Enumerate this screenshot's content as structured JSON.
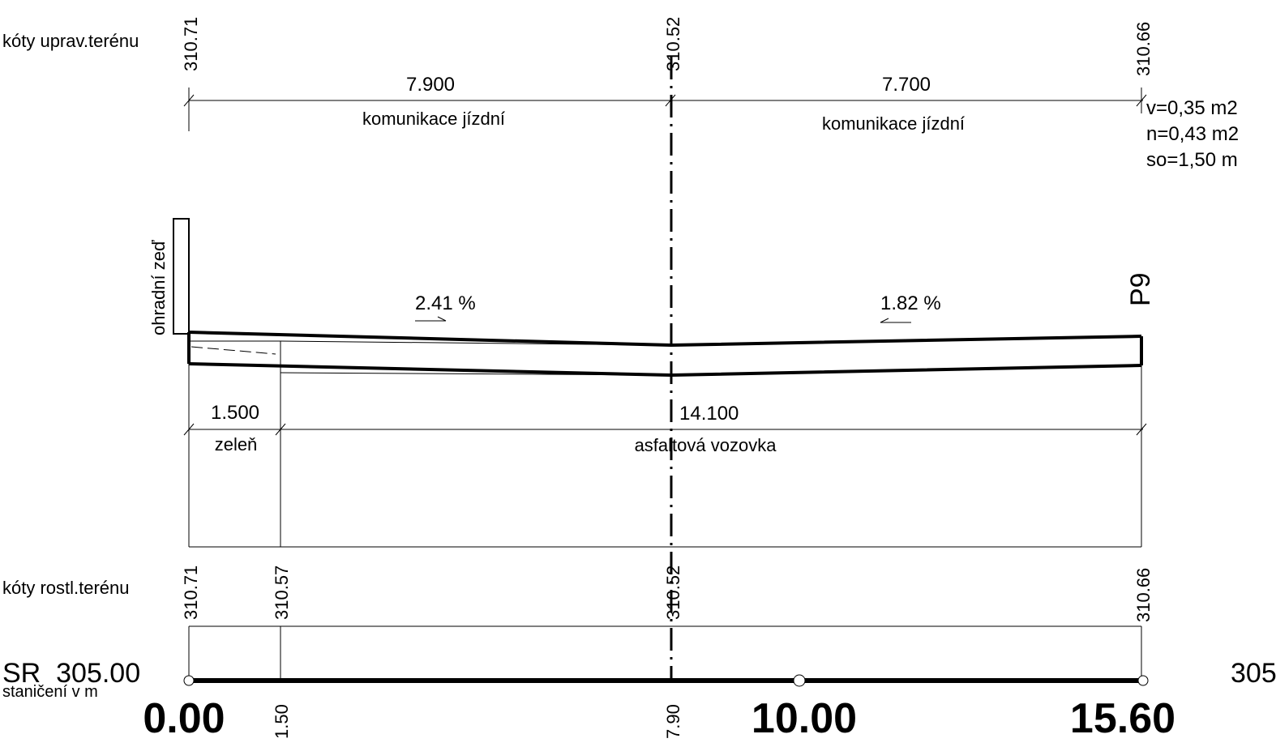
{
  "labels": {
    "upper_terrain": "kóty uprav.terénu",
    "existing_terrain": "kóty rostl.terénu",
    "reference_level": "SR  305.00",
    "reference_level_right": "305",
    "stationing": "staničení v m",
    "profile_name": "P9",
    "wall": "ohradní zeď"
  },
  "areas": {
    "v": "v=0,35 m2",
    "n": "n=0,43 m2",
    "so": "so=1,50 m"
  },
  "upper_elevations": [
    "310.71",
    "310.52",
    "310.66"
  ],
  "lower_elevations": [
    "310.71",
    "310.57",
    "310.52",
    "310.66"
  ],
  "top_dimensions": [
    {
      "value": "7.900",
      "label": "komunikace jízdní"
    },
    {
      "value": "7.700",
      "label": "komunikace jízdní"
    }
  ],
  "slopes": [
    "2.41 %",
    "1.82 %"
  ],
  "bottom_dimensions": [
    {
      "value": "1.500",
      "label": "zeleň"
    },
    {
      "value": "14.100",
      "label": "asfaltová vozovka"
    }
  ],
  "stations_small": [
    "1.50",
    "7.90"
  ],
  "stations_big": [
    "0.00",
    "10.00",
    "15.60"
  ]
}
